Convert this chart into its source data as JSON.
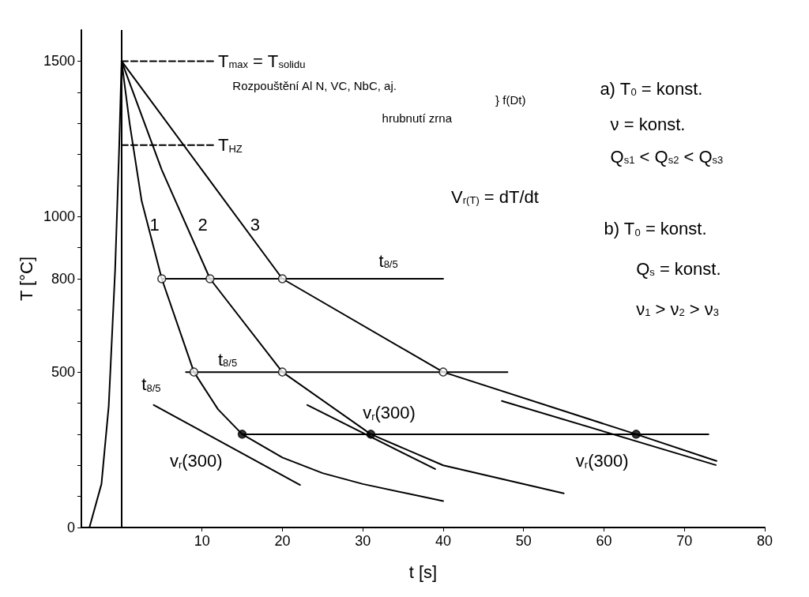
{
  "chart_data": {
    "type": "line",
    "xlabel": "t [s]",
    "ylabel": "T [°C]",
    "xlim": [
      -5,
      80
    ],
    "xticks": [
      10,
      20,
      30,
      40,
      50,
      60,
      70,
      80
    ],
    "ylim": [
      0,
      1600
    ],
    "yticks": [
      0,
      {
        "value": 100,
        "label": null
      },
      {
        "value": 200,
        "label": null
      },
      {
        "value": 300,
        "label": null
      },
      {
        "value": 400,
        "label": null
      },
      500,
      {
        "value": 600,
        "label": null
      },
      {
        "value": 700,
        "label": null
      },
      800,
      {
        "value": 900,
        "label": null
      },
      1000,
      {
        "value": 1100,
        "label": null
      },
      {
        "value": 1200,
        "label": null
      },
      {
        "value": 1300,
        "label": null
      },
      {
        "value": 1400,
        "label": null
      },
      1500
    ],
    "ref_lines": [
      {
        "axis": "x",
        "value": 0,
        "color": "#000000"
      }
    ],
    "grid": false,
    "marker": "none",
    "line_style": "solid",
    "series": [
      {
        "color": "#000000",
        "x": [
          -4,
          -2.5,
          -1.6,
          -0.8,
          -0.3,
          0
        ],
        "values": [
          0,
          140,
          390,
          830,
          1220,
          1500
        ]
      },
      {
        "color": "#000000",
        "x": [
          0,
          1,
          2.5,
          5,
          9,
          12,
          15,
          20,
          25,
          30,
          40
        ],
        "values": [
          1500,
          1300,
          1050,
          800,
          500,
          380,
          300,
          225,
          175,
          140,
          85
        ]
      },
      {
        "color": "#000000",
        "x": [
          0,
          5,
          11,
          20,
          31,
          40,
          55
        ],
        "values": [
          1500,
          1150,
          800,
          500,
          300,
          200,
          110
        ]
      },
      {
        "color": "#000000",
        "x": [
          0,
          10,
          20,
          40,
          64,
          74
        ],
        "values": [
          1500,
          1150,
          800,
          500,
          300,
          214
        ]
      },
      {
        "color": "#000000",
        "line_style": "dashed",
        "x": [
          0,
          11.5
        ],
        "values": [
          1500,
          1500
        ]
      },
      {
        "color": "#000000",
        "line_style": "dashed",
        "x": [
          0,
          11.5
        ],
        "values": [
          1230,
          1230
        ]
      },
      {
        "color": "#000000",
        "x": [
          5,
          40
        ],
        "values": [
          800,
          800
        ]
      },
      {
        "color": "#000000",
        "x": [
          8,
          48
        ],
        "values": [
          500,
          500
        ]
      },
      {
        "color": "#000000",
        "x": [
          15,
          73
        ],
        "values": [
          300,
          300
        ]
      },
      {
        "color": "#000000",
        "x": [
          4,
          22.2
        ],
        "values": [
          394,
          137
        ]
      },
      {
        "color": "#000000",
        "x": [
          23.1,
          39
        ],
        "values": [
          394,
          188
        ]
      },
      {
        "color": "#000000",
        "x": [
          47.3,
          73.9
        ],
        "values": [
          407,
          201
        ]
      },
      {
        "type": "scatter",
        "marker": "circle",
        "color": "#ffffff",
        "x": [
          5,
          11,
          20,
          9,
          20,
          40
        ],
        "values": [
          800,
          800,
          800,
          500,
          500,
          500
        ]
      },
      {
        "type": "scatter",
        "marker": "circle",
        "color": "#000000",
        "x": [
          15,
          31,
          64
        ],
        "values": [
          300,
          300,
          300
        ]
      }
    ],
    "annotations": [
      "T$_{max}$ = T$_{solidu}$",
      "T$_{HZ}$",
      "Rozpouštění Al N, VC, NbC, aj.",
      "hrubnutí zrna",
      "} f(Dt)",
      "a) T$_{0}$ = konst.",
      "ν = konst.",
      "Q$_{s1}$ < Q$_{s2}$ < Q$_{s3}$",
      "V$_{r(T)}$ = dT/dt",
      "b) T$_{0}$ = konst.",
      "Q$_{s}$ = konst.",
      "ν$_{1}$ > ν$_{2}$ > ν$_{3}$",
      "1",
      "2",
      "3",
      "t$_{8/5}$",
      "t$_{8/5}$",
      "t$_{8/5}$",
      "v$_{r}$(300)",
      "v$_{r}$(300)",
      "v$_{r}$(300)"
    ]
  }
}
